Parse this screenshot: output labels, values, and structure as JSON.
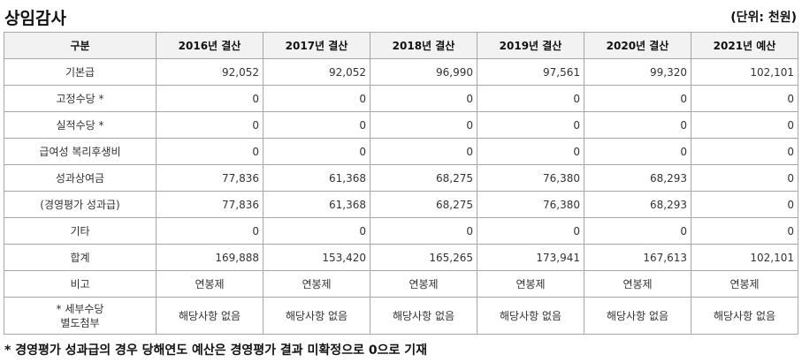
{
  "title": "상임감사",
  "unit": "(단위: 천원)",
  "table": {
    "headers": [
      "구분",
      "2016년 결산",
      "2017년 결산",
      "2018년 결산",
      "2019년 결산",
      "2020년 결산",
      "2021년 예산"
    ],
    "rows": [
      {
        "label": "기본급",
        "values": [
          "92,052",
          "92,052",
          "96,990",
          "97,561",
          "99,320",
          "102,101"
        ]
      },
      {
        "label": "고정수당 *",
        "values": [
          "0",
          "0",
          "0",
          "0",
          "0",
          "0"
        ]
      },
      {
        "label": "실적수당 *",
        "values": [
          "0",
          "0",
          "0",
          "0",
          "0",
          "0"
        ]
      },
      {
        "label": "급여성 복리후생비",
        "values": [
          "0",
          "0",
          "0",
          "0",
          "0",
          "0"
        ]
      },
      {
        "label": "성과상여금",
        "values": [
          "77,836",
          "61,368",
          "68,275",
          "76,380",
          "68,293",
          "0"
        ]
      },
      {
        "label": "(경영평가 성과급)",
        "values": [
          "77,836",
          "61,368",
          "68,275",
          "76,380",
          "68,293",
          "0"
        ]
      },
      {
        "label": "기타",
        "values": [
          "0",
          "0",
          "0",
          "0",
          "0",
          "0"
        ]
      },
      {
        "label": "합계",
        "values": [
          "169,888",
          "153,420",
          "165,265",
          "173,941",
          "167,613",
          "102,101"
        ]
      },
      {
        "label": "비고",
        "values": [
          "연봉제",
          "연봉제",
          "연봉제",
          "연봉제",
          "연봉제",
          "연봉제"
        ]
      }
    ],
    "last_row": {
      "label_line1": "* 세부수당",
      "label_line2": "별도첨부",
      "values": [
        "해당사항 없음",
        "해당사항 없음",
        "해당사항 없음",
        "해당사항 없음",
        "해당사항 없음",
        "해당사항 없음"
      ]
    }
  },
  "footnote": "* 경영평가 성과급의 경우 당해연도 예산은 경영평가 결과 미확정으로 0으로 기재"
}
